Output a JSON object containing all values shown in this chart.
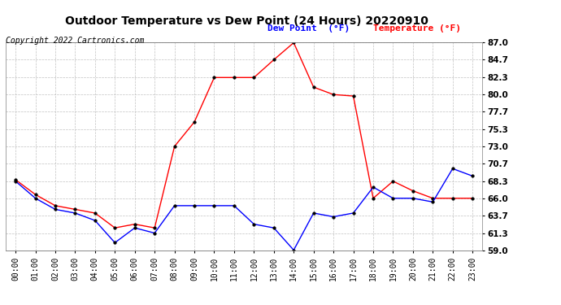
{
  "title": "Outdoor Temperature vs Dew Point (24 Hours) 20220910",
  "copyright": "Copyright 2022 Cartronics.com",
  "legend_dew": "Dew Point  (°F)",
  "legend_temp": "Temperature (°F)",
  "hours": [
    0,
    1,
    2,
    3,
    4,
    5,
    6,
    7,
    8,
    9,
    10,
    11,
    12,
    13,
    14,
    15,
    16,
    17,
    18,
    19,
    20,
    21,
    22,
    23
  ],
  "temperature": [
    68.3,
    66.0,
    64.5,
    64.0,
    63.0,
    60.0,
    62.0,
    61.3,
    65.0,
    65.0,
    65.0,
    65.0,
    62.5,
    62.0,
    59.0,
    64.0,
    63.5,
    64.0,
    67.5,
    66.0,
    66.0,
    65.5,
    70.0,
    69.0
  ],
  "dew_point": [
    68.5,
    66.5,
    65.0,
    64.5,
    64.0,
    62.0,
    62.5,
    62.0,
    73.0,
    76.3,
    82.3,
    82.3,
    82.3,
    84.7,
    87.0,
    81.0,
    80.0,
    79.8,
    66.0,
    68.3,
    67.0,
    66.0,
    66.0,
    66.0
  ],
  "ylim": [
    59.0,
    87.0
  ],
  "yticks": [
    59.0,
    61.3,
    63.7,
    66.0,
    68.3,
    70.7,
    73.0,
    75.3,
    77.7,
    80.0,
    82.3,
    84.7,
    87.0
  ],
  "temp_color": "blue",
  "dew_color": "red",
  "bg_color": "#ffffff",
  "grid_color": "#bbbbbb",
  "title_color": "#000000",
  "copyright_color": "#000000",
  "legend_dew_color": "blue",
  "legend_temp_color": "red",
  "title_fontsize": 10,
  "copyright_fontsize": 7,
  "tick_fontsize": 7,
  "legend_fontsize": 8
}
